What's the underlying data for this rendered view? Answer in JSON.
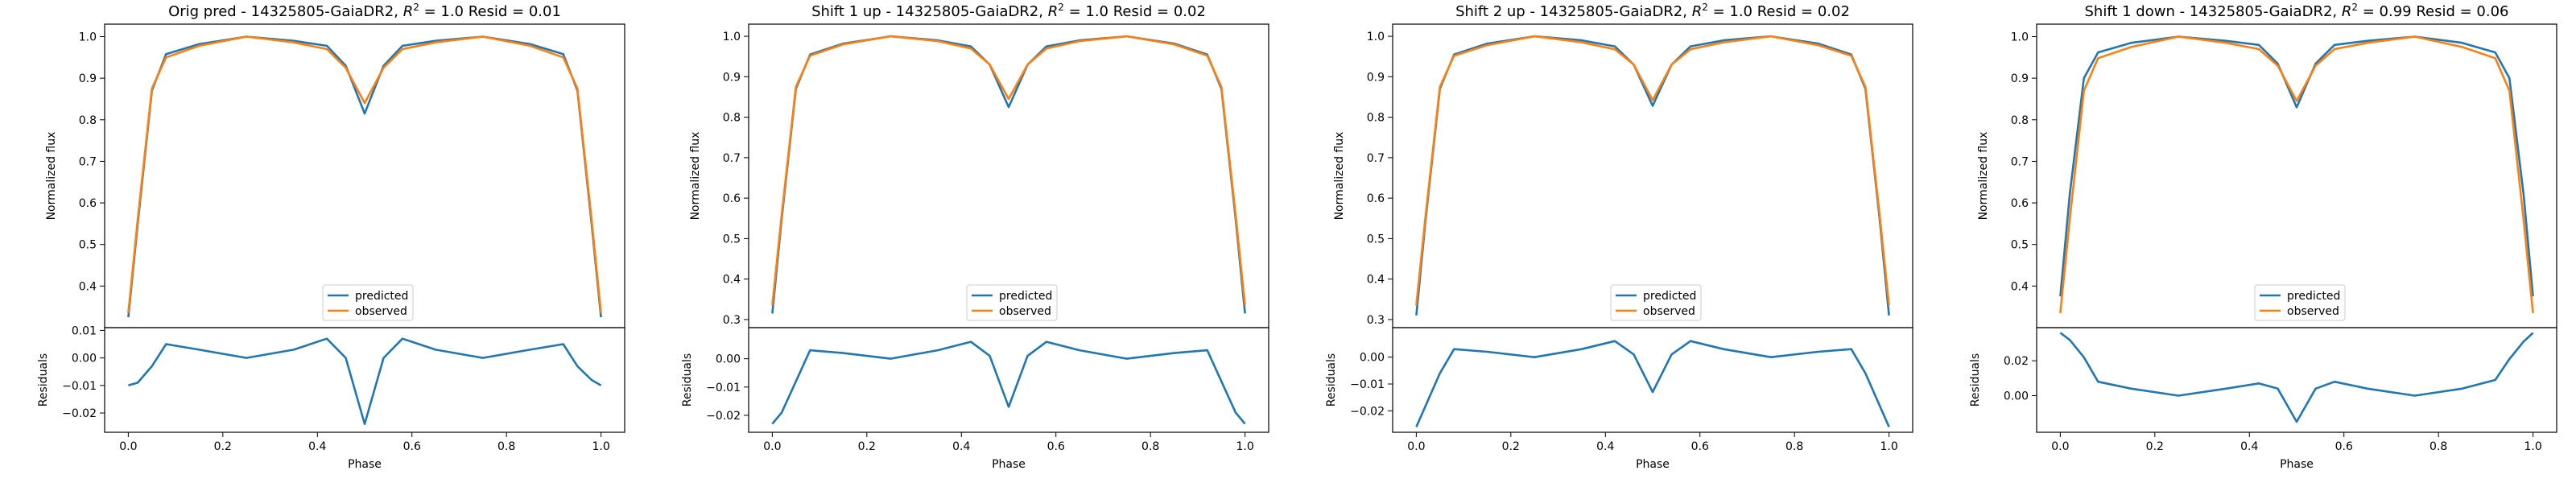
{
  "chart_data": [
    {
      "type": "line",
      "title_prefix": "Orig pred - 14325805-GaiaDR2, ",
      "title_r2": "1.0",
      "title_resid": "0.01",
      "top": {
        "ylabel": "Normalized flux",
        "ylim": [
          0.3,
          1.03
        ],
        "yticks": [
          "0.4",
          "0.5",
          "0.6",
          "0.7",
          "0.8",
          "0.9",
          "1.0"
        ],
        "legend": "lower-center",
        "x": [
          0.0,
          0.02,
          0.05,
          0.08,
          0.15,
          0.25,
          0.35,
          0.42,
          0.46,
          0.5,
          0.54,
          0.58,
          0.65,
          0.75,
          0.85,
          0.92,
          0.95,
          0.98,
          1.0
        ],
        "series": [
          {
            "name": "predicted",
            "color": "#1f77b4",
            "values": [
              0.325,
              0.55,
              0.87,
              0.958,
              0.982,
              1.0,
              0.99,
              0.978,
              0.93,
              0.815,
              0.93,
              0.978,
              0.99,
              1.0,
              0.982,
              0.958,
              0.87,
              0.55,
              0.325
            ]
          },
          {
            "name": "observed",
            "color": "#ff7f0e",
            "values": [
              0.335,
              0.56,
              0.875,
              0.95,
              0.978,
              1.0,
              0.986,
              0.97,
              0.925,
              0.84,
              0.925,
              0.97,
              0.986,
              1.0,
              0.978,
              0.95,
              0.875,
              0.56,
              0.335
            ]
          }
        ]
      },
      "bottom": {
        "ylabel": "Residuals",
        "ylim": [
          -0.027,
          0.011
        ],
        "yticks": [
          "-0.02",
          "-0.01",
          "0.00",
          "0.01"
        ],
        "x": [
          0.0,
          0.02,
          0.05,
          0.08,
          0.15,
          0.25,
          0.35,
          0.42,
          0.46,
          0.5,
          0.54,
          0.58,
          0.65,
          0.75,
          0.85,
          0.92,
          0.95,
          0.98,
          1.0
        ],
        "values": [
          -0.01,
          -0.009,
          -0.003,
          0.005,
          0.003,
          0.0,
          0.003,
          0.007,
          0.0,
          -0.024,
          0.0,
          0.007,
          0.003,
          0.0,
          0.003,
          0.005,
          -0.003,
          -0.008,
          -0.01
        ]
      },
      "xlabel": "Phase",
      "xticks": [
        "0.0",
        "0.2",
        "0.4",
        "0.6",
        "0.8",
        "1.0"
      ]
    },
    {
      "type": "line",
      "title_prefix": "Shift 1 up - 14325805-GaiaDR2, ",
      "title_r2": "1.0",
      "title_resid": "0.02",
      "top": {
        "ylabel": "Normalized flux",
        "ylim": [
          0.28,
          1.03
        ],
        "yticks": [
          "0.3",
          "0.4",
          "0.5",
          "0.6",
          "0.7",
          "0.8",
          "0.9",
          "1.0"
        ],
        "legend": "lower-center",
        "x": [
          0.0,
          0.02,
          0.05,
          0.08,
          0.15,
          0.25,
          0.35,
          0.42,
          0.46,
          0.5,
          0.54,
          0.58,
          0.65,
          0.75,
          0.85,
          0.92,
          0.95,
          0.98,
          1.0
        ],
        "series": [
          {
            "name": "predicted",
            "color": "#1f77b4",
            "values": [
              0.315,
              0.55,
              0.87,
              0.955,
              0.982,
              1.0,
              0.99,
              0.975,
              0.93,
              0.825,
              0.93,
              0.975,
              0.99,
              1.0,
              0.982,
              0.955,
              0.87,
              0.55,
              0.315
            ]
          },
          {
            "name": "observed",
            "color": "#ff7f0e",
            "values": [
              0.335,
              0.56,
              0.875,
              0.952,
              0.98,
              1.0,
              0.988,
              0.97,
              0.93,
              0.845,
              0.93,
              0.97,
              0.988,
              1.0,
              0.98,
              0.952,
              0.875,
              0.56,
              0.335
            ]
          }
        ]
      },
      "bottom": {
        "ylabel": "Residuals",
        "ylim": [
          -0.026,
          0.011
        ],
        "yticks": [
          "-0.02",
          "-0.01",
          "0.00"
        ],
        "x": [
          0.0,
          0.02,
          0.05,
          0.08,
          0.15,
          0.25,
          0.35,
          0.42,
          0.46,
          0.5,
          0.54,
          0.58,
          0.65,
          0.75,
          0.85,
          0.92,
          0.95,
          0.98,
          1.0
        ],
        "values": [
          -0.023,
          -0.019,
          -0.008,
          0.003,
          0.002,
          0.0,
          0.003,
          0.006,
          0.001,
          -0.017,
          0.001,
          0.006,
          0.003,
          0.0,
          0.002,
          0.003,
          -0.008,
          -0.019,
          -0.023
        ]
      },
      "xlabel": "Phase",
      "xticks": [
        "0.0",
        "0.2",
        "0.4",
        "0.6",
        "0.8",
        "1.0"
      ]
    },
    {
      "type": "line",
      "title_prefix": "Shift 2 up - 14325805-GaiaDR2, ",
      "title_r2": "1.0",
      "title_resid": "0.02",
      "top": {
        "ylabel": "Normalized flux",
        "ylim": [
          0.28,
          1.03
        ],
        "yticks": [
          "0.3",
          "0.4",
          "0.5",
          "0.6",
          "0.7",
          "0.8",
          "0.9",
          "1.0"
        ],
        "legend": "lower-center",
        "x": [
          0.0,
          0.02,
          0.05,
          0.08,
          0.15,
          0.25,
          0.35,
          0.42,
          0.46,
          0.5,
          0.54,
          0.58,
          0.65,
          0.75,
          0.85,
          0.92,
          0.95,
          0.98,
          1.0
        ],
        "series": [
          {
            "name": "predicted",
            "color": "#1f77b4",
            "values": [
              0.31,
              0.55,
              0.87,
              0.955,
              0.982,
              1.0,
              0.99,
              0.975,
              0.93,
              0.828,
              0.93,
              0.975,
              0.99,
              1.0,
              0.982,
              0.955,
              0.87,
              0.55,
              0.31
            ]
          },
          {
            "name": "observed",
            "color": "#ff7f0e",
            "values": [
              0.335,
              0.56,
              0.875,
              0.952,
              0.978,
              1.0,
              0.985,
              0.968,
              0.93,
              0.842,
              0.93,
              0.968,
              0.985,
              1.0,
              0.978,
              0.952,
              0.875,
              0.56,
              0.335
            ]
          }
        ]
      },
      "bottom": {
        "ylabel": "Residuals",
        "ylim": [
          -0.028,
          0.011
        ],
        "yticks": [
          "-0.02",
          "-0.01",
          "0.00"
        ],
        "x": [
          0.0,
          0.02,
          0.05,
          0.08,
          0.15,
          0.25,
          0.35,
          0.42,
          0.46,
          0.5,
          0.54,
          0.58,
          0.65,
          0.75,
          0.85,
          0.92,
          0.95,
          0.98,
          1.0
        ],
        "values": [
          -0.026,
          -0.018,
          -0.006,
          0.003,
          0.002,
          0.0,
          0.003,
          0.006,
          0.001,
          -0.013,
          0.001,
          0.006,
          0.003,
          0.0,
          0.002,
          0.003,
          -0.006,
          -0.018,
          -0.026
        ]
      },
      "xlabel": "Phase",
      "xticks": [
        "0.0",
        "0.2",
        "0.4",
        "0.6",
        "0.8",
        "1.0"
      ]
    },
    {
      "type": "line",
      "title_prefix": "Shift 1 down - 14325805-GaiaDR2, ",
      "title_r2": "0.99",
      "title_resid": "0.06",
      "top": {
        "ylabel": "Normalized flux",
        "ylim": [
          0.3,
          1.03
        ],
        "yticks": [
          "0.4",
          "0.5",
          "0.6",
          "0.7",
          "0.8",
          "0.9",
          "1.0"
        ],
        "legend": "lower-center",
        "x": [
          0.0,
          0.02,
          0.05,
          0.08,
          0.15,
          0.25,
          0.35,
          0.42,
          0.46,
          0.5,
          0.54,
          0.58,
          0.65,
          0.75,
          0.85,
          0.92,
          0.95,
          0.98,
          1.0
        ],
        "series": [
          {
            "name": "predicted",
            "color": "#1f77b4",
            "values": [
              0.375,
              0.62,
              0.9,
              0.962,
              0.985,
              1.0,
              0.99,
              0.98,
              0.935,
              0.83,
              0.935,
              0.98,
              0.99,
              1.0,
              0.985,
              0.962,
              0.9,
              0.62,
              0.375
            ]
          },
          {
            "name": "observed",
            "color": "#ff7f0e",
            "values": [
              0.335,
              0.56,
              0.87,
              0.948,
              0.975,
              1.0,
              0.985,
              0.97,
              0.93,
              0.845,
              0.93,
              0.97,
              0.985,
              1.0,
              0.975,
              0.948,
              0.87,
              0.56,
              0.335
            ]
          }
        ]
      },
      "bottom": {
        "ylabel": "Residuals",
        "ylim": [
          -0.021,
          0.039
        ],
        "yticks": [
          "0.00",
          "0.02"
        ],
        "x": [
          0.0,
          0.02,
          0.05,
          0.08,
          0.15,
          0.25,
          0.35,
          0.42,
          0.46,
          0.5,
          0.54,
          0.58,
          0.65,
          0.75,
          0.85,
          0.92,
          0.95,
          0.98,
          1.0
        ],
        "values": [
          0.036,
          0.032,
          0.022,
          0.008,
          0.004,
          0.0,
          0.004,
          0.007,
          0.004,
          -0.015,
          0.004,
          0.008,
          0.004,
          0.0,
          0.004,
          0.009,
          0.021,
          0.031,
          0.036
        ]
      },
      "xlabel": "Phase",
      "xticks": [
        "0.0",
        "0.2",
        "0.4",
        "0.6",
        "0.8",
        "1.0"
      ]
    }
  ]
}
